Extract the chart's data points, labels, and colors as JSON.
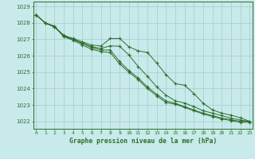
{
  "xlabel": "Graphe pression niveau de la mer (hPa)",
  "x": [
    0,
    1,
    2,
    3,
    4,
    5,
    6,
    7,
    8,
    9,
    10,
    11,
    12,
    13,
    14,
    15,
    16,
    17,
    18,
    19,
    20,
    21,
    22,
    23
  ],
  "line1": [
    1028.5,
    1028.0,
    1027.8,
    1027.15,
    1026.95,
    1026.65,
    1026.4,
    1026.25,
    1026.2,
    1025.5,
    1025.0,
    1024.55,
    1024.0,
    1023.55,
    1023.15,
    1023.05,
    1022.85,
    1022.65,
    1022.45,
    1022.3,
    1022.15,
    1022.05,
    1021.95,
    1021.95
  ],
  "line2": [
    1028.5,
    1028.0,
    1027.8,
    1027.2,
    1027.0,
    1026.75,
    1026.5,
    1026.35,
    1026.35,
    1025.65,
    1025.1,
    1024.65,
    1024.1,
    1023.65,
    1023.25,
    1023.1,
    1022.9,
    1022.7,
    1022.5,
    1022.35,
    1022.2,
    1022.1,
    1022.0,
    1022.0
  ],
  "line3": [
    1028.5,
    1028.0,
    1027.75,
    1027.25,
    1027.05,
    1026.85,
    1026.65,
    1026.6,
    1027.05,
    1027.05,
    1026.55,
    1026.3,
    1026.2,
    1025.55,
    1024.85,
    1024.3,
    1024.2,
    1023.7,
    1023.1,
    1022.7,
    1022.5,
    1022.38,
    1022.22,
    1022.0
  ],
  "line4": [
    1028.5,
    1028.0,
    1027.75,
    1027.2,
    1027.0,
    1026.78,
    1026.55,
    1026.45,
    1026.6,
    1026.58,
    1026.05,
    1025.35,
    1024.75,
    1024.1,
    1023.6,
    1023.25,
    1023.12,
    1022.9,
    1022.65,
    1022.5,
    1022.35,
    1022.2,
    1022.08,
    1022.0
  ],
  "bg_color": "#c8eaea",
  "grid_color": "#aad0d0",
  "line_color": "#2d6e2d",
  "ylim_min": 1021.55,
  "ylim_max": 1029.3,
  "yticks": [
    1022,
    1023,
    1024,
    1025,
    1026,
    1027,
    1028,
    1029
  ],
  "xticks": [
    0,
    1,
    2,
    3,
    4,
    5,
    6,
    7,
    8,
    9,
    10,
    11,
    12,
    13,
    14,
    15,
    16,
    17,
    18,
    19,
    20,
    21,
    22,
    23
  ]
}
